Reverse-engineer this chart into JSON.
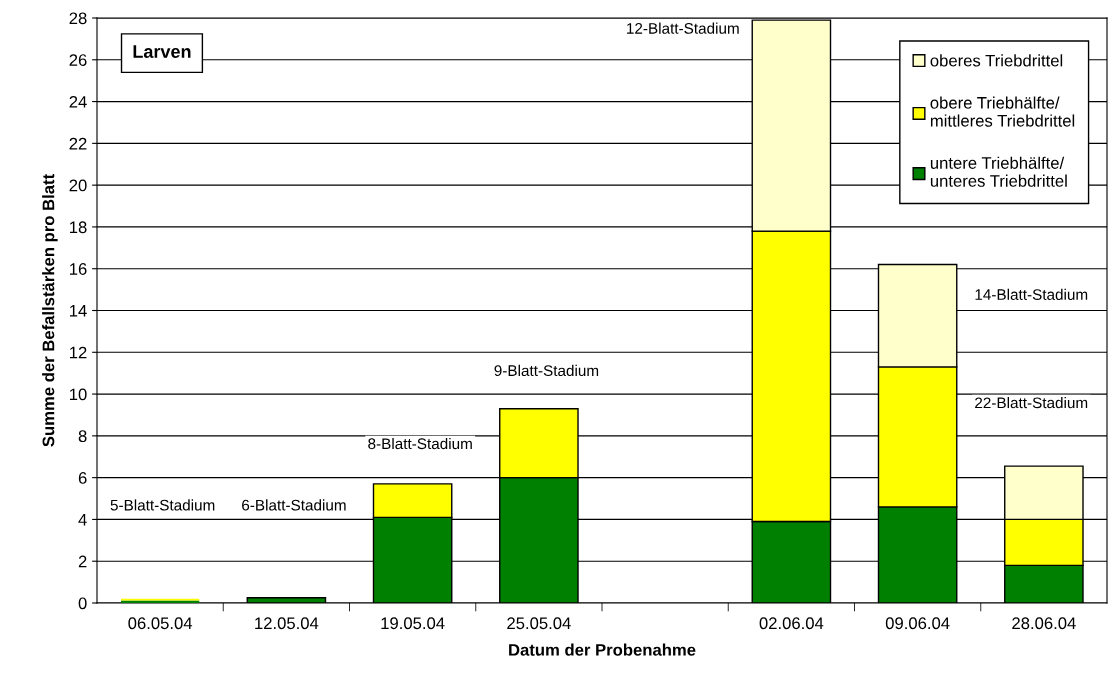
{
  "chart_data": {
    "type": "bar",
    "stacked": true,
    "xlabel": "Datum der Probenahme",
    "ylabel": "Summe der Befallstärken pro Blatt",
    "categories": [
      "06.05.04",
      "12.05.04",
      "19.05.04",
      "25.05.04",
      null,
      "02.06.04",
      "09.06.04",
      "28.06.04"
    ],
    "series": [
      {
        "name": "untere Triebhälfte/\nunteres Triebdrittel",
        "color": "#008000",
        "values": [
          0.12,
          0.25,
          4.1,
          6.0,
          null,
          3.9,
          4.6,
          1.8
        ]
      },
      {
        "name": "obere Triebhälfte/\nmittleres Triebdrittel",
        "color": "#ffff00",
        "values": [
          0.08,
          null,
          1.6,
          3.3,
          null,
          13.9,
          6.7,
          2.2
        ]
      },
      {
        "name": "oberes Triebdrittel",
        "color": "#ffffcc",
        "values": [
          null,
          null,
          null,
          null,
          null,
          10.1,
          4.9,
          2.55
        ]
      }
    ],
    "ylim": [
      0,
      28
    ],
    "yticks": [
      0,
      2,
      4,
      6,
      8,
      10,
      12,
      14,
      16,
      18,
      20,
      22,
      24,
      26,
      28
    ],
    "grid": "y",
    "legend": "top right",
    "annotations": [
      "Larven",
      "5-Blatt-Stadium",
      "6-Blatt-Stadium",
      "8-Blatt-Stadium",
      "9-Blatt-Stadium",
      "12-Blatt-Stadium",
      "14-Blatt-Stadium",
      "22-Blatt-Stadium"
    ]
  }
}
